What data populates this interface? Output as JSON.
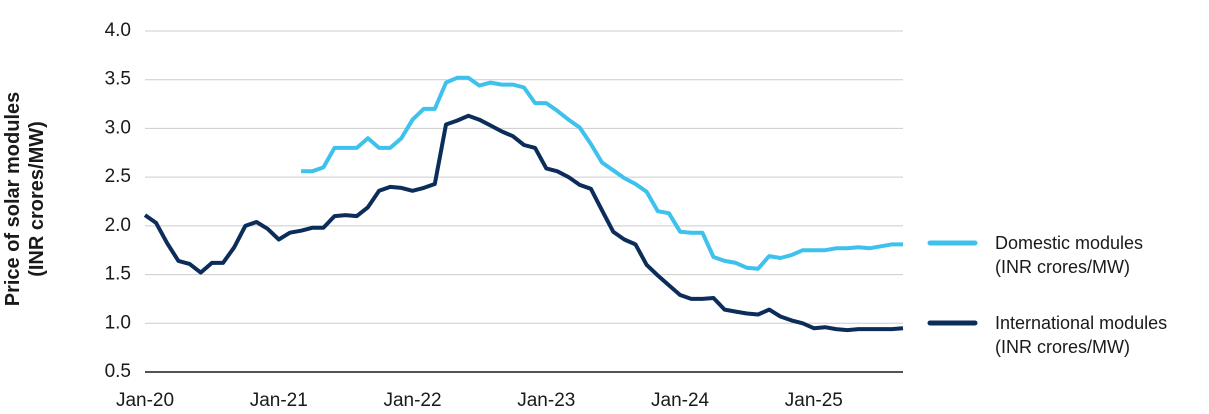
{
  "chart_data": {
    "type": "line",
    "ylabel": "Price of solar modules (INR crores/MW)",
    "categories": [
      "Jan-20",
      null,
      null,
      null,
      null,
      null,
      null,
      null,
      null,
      null,
      null,
      null,
      "Jan-21",
      null,
      null,
      null,
      null,
      null,
      null,
      null,
      null,
      null,
      null,
      null,
      "Jan-22",
      null,
      null,
      null,
      null,
      null,
      null,
      null,
      null,
      null,
      null,
      null,
      "Jan-23",
      null,
      null,
      null,
      null,
      null,
      null,
      null,
      null,
      null,
      null,
      null,
      "Jan-24",
      null,
      null,
      null,
      null,
      null,
      null,
      null,
      null,
      null,
      null,
      null,
      "Jan-25",
      null,
      null,
      null,
      null,
      null,
      null,
      null,
      null
    ],
    "series": [
      {
        "name": "Domestic modules (INR crores/MW)",
        "color": "#3ec1ec",
        "values": [
          null,
          null,
          null,
          null,
          null,
          null,
          null,
          null,
          null,
          null,
          null,
          null,
          null,
          null,
          2.56,
          2.56,
          2.6,
          2.8,
          2.8,
          2.8,
          2.9,
          2.8,
          2.8,
          2.9,
          3.09,
          3.2,
          3.2,
          3.47,
          3.52,
          3.52,
          3.44,
          3.47,
          3.45,
          3.45,
          3.42,
          3.26,
          3.26,
          3.18,
          3.09,
          3.01,
          2.84,
          2.65,
          2.57,
          2.49,
          2.43,
          2.35,
          2.15,
          2.13,
          1.94,
          1.93,
          1.93,
          1.68,
          1.64,
          1.62,
          1.57,
          1.56,
          1.69,
          1.67,
          1.7,
          1.75,
          1.75,
          1.75,
          1.77,
          1.77,
          1.78,
          1.77,
          1.79,
          1.81,
          1.81
        ]
      },
      {
        "name": "International modules (INR crores/MW)",
        "color": "#0c2d5a",
        "values": [
          2.11,
          2.03,
          1.82,
          1.64,
          1.61,
          1.52,
          1.62,
          1.62,
          1.78,
          2.0,
          2.04,
          1.97,
          1.86,
          1.93,
          1.95,
          1.98,
          1.98,
          2.1,
          2.11,
          2.1,
          2.19,
          2.36,
          2.4,
          2.39,
          2.36,
          2.39,
          2.43,
          3.04,
          3.08,
          3.13,
          3.09,
          3.03,
          2.97,
          2.92,
          2.83,
          2.8,
          2.59,
          2.56,
          2.5,
          2.42,
          2.38,
          2.16,
          1.94,
          1.86,
          1.81,
          1.6,
          1.49,
          1.39,
          1.29,
          1.25,
          1.25,
          1.26,
          1.14,
          1.12,
          1.1,
          1.09,
          1.14,
          1.07,
          1.03,
          1.0,
          0.95,
          0.96,
          0.94,
          0.93,
          0.94,
          0.94,
          0.94,
          0.94,
          0.95
        ]
      }
    ],
    "ylim": [
      0.5,
      4.0
    ],
    "yticks": [
      0.5,
      {
        "value": 1,
        "label": "1.0"
      },
      1.5,
      {
        "value": 2,
        "label": "2.0"
      },
      2.5,
      {
        "value": 3,
        "label": "3.0"
      },
      3.5,
      {
        "value": 4,
        "label": "4.0"
      }
    ],
    "grid": true,
    "legend": "right"
  }
}
